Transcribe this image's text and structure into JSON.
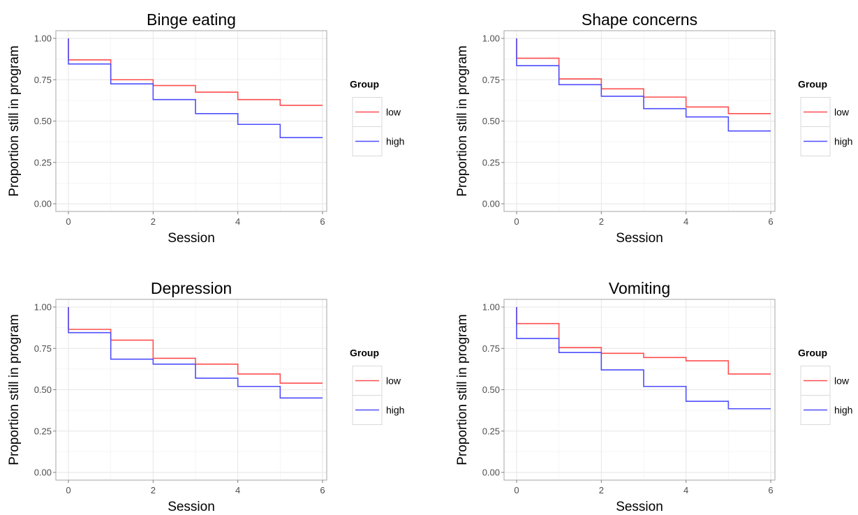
{
  "chart_data": [
    {
      "type": "line",
      "step": true,
      "title": "Binge eating",
      "xlabel": "Session",
      "ylabel": "Proportion still in program",
      "xlim": [
        0,
        6
      ],
      "ylim": [
        0,
        1
      ],
      "x_ticks": [
        "0",
        "2",
        "4",
        "6"
      ],
      "y_ticks": [
        "0.00",
        "0.25",
        "0.50",
        "0.75",
        "1.00"
      ],
      "grid": true,
      "legend": {
        "title": "Group",
        "placement": "right"
      },
      "x": [
        0,
        1,
        2,
        3,
        4,
        5,
        6
      ],
      "series": [
        {
          "name": "low",
          "color": "#ff4d4d",
          "values": [
            0.87,
            0.75,
            0.715,
            0.675,
            0.63,
            0.595,
            0.595
          ]
        },
        {
          "name": "high",
          "color": "#4d4dff",
          "values": [
            0.845,
            0.725,
            0.63,
            0.545,
            0.48,
            0.4,
            0.4
          ]
        }
      ]
    },
    {
      "type": "line",
      "step": true,
      "title": "Shape concerns",
      "xlabel": "Session",
      "ylabel": "Proportion still in program",
      "xlim": [
        0,
        6
      ],
      "ylim": [
        0,
        1
      ],
      "x_ticks": [
        "0",
        "2",
        "4",
        "6"
      ],
      "y_ticks": [
        "0.00",
        "0.25",
        "0.50",
        "0.75",
        "1.00"
      ],
      "grid": true,
      "legend": {
        "title": "Group",
        "placement": "right"
      },
      "x": [
        0,
        1,
        2,
        3,
        4,
        5,
        6
      ],
      "series": [
        {
          "name": "low",
          "color": "#ff4d4d",
          "values": [
            0.88,
            0.755,
            0.695,
            0.645,
            0.585,
            0.545,
            0.545
          ]
        },
        {
          "name": "high",
          "color": "#4d4dff",
          "values": [
            0.835,
            0.72,
            0.65,
            0.575,
            0.525,
            0.44,
            0.44
          ]
        }
      ]
    },
    {
      "type": "line",
      "step": true,
      "title": "Depression",
      "xlabel": "Session",
      "ylabel": "Proportion still in program",
      "xlim": [
        0,
        6
      ],
      "ylim": [
        0,
        1
      ],
      "x_ticks": [
        "0",
        "2",
        "4",
        "6"
      ],
      "y_ticks": [
        "0.00",
        "0.25",
        "0.50",
        "0.75",
        "1.00"
      ],
      "grid": true,
      "legend": {
        "title": "Group",
        "placement": "right"
      },
      "x": [
        0,
        1,
        2,
        3,
        4,
        5,
        6
      ],
      "series": [
        {
          "name": "low",
          "color": "#ff4d4d",
          "values": [
            0.865,
            0.8,
            0.69,
            0.655,
            0.595,
            0.54,
            0.54
          ]
        },
        {
          "name": "high",
          "color": "#4d4dff",
          "values": [
            0.845,
            0.685,
            0.655,
            0.57,
            0.52,
            0.45,
            0.45
          ]
        }
      ]
    },
    {
      "type": "line",
      "step": true,
      "title": "Vomiting",
      "xlabel": "Session",
      "ylabel": "Proportion still in program",
      "xlim": [
        0,
        6
      ],
      "ylim": [
        0,
        1
      ],
      "x_ticks": [
        "0",
        "2",
        "4",
        "6"
      ],
      "y_ticks": [
        "0.00",
        "0.25",
        "0.50",
        "0.75",
        "1.00"
      ],
      "grid": true,
      "legend": {
        "title": "Group",
        "placement": "right"
      },
      "x": [
        0,
        1,
        2,
        3,
        4,
        5,
        6
      ],
      "series": [
        {
          "name": "low",
          "color": "#ff4d4d",
          "values": [
            0.9,
            0.755,
            0.72,
            0.695,
            0.675,
            0.595,
            0.595
          ]
        },
        {
          "name": "high",
          "color": "#4d4dff",
          "values": [
            0.81,
            0.725,
            0.62,
            0.52,
            0.43,
            0.385,
            0.385
          ]
        }
      ]
    }
  ]
}
